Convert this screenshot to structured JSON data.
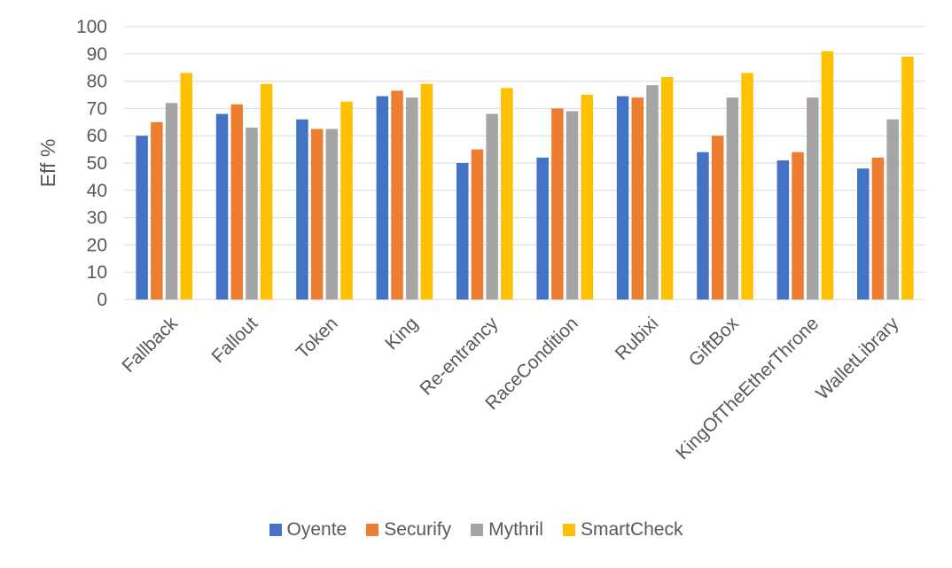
{
  "chart_data": {
    "type": "bar",
    "title": "",
    "xlabel": "",
    "ylabel": "Eff %",
    "ylim": [
      0,
      100
    ],
    "yticks": [
      0,
      10,
      20,
      30,
      40,
      50,
      60,
      70,
      80,
      90,
      100
    ],
    "grid": true,
    "legend_position": "bottom",
    "categories": [
      "Fallback",
      "Fallout",
      "Token",
      "King",
      "Re-entrancy",
      "RaceCondition",
      "Rubixi",
      "GiftBox",
      "KingOfTheEtherThrone",
      "WalletLibrary"
    ],
    "series": [
      {
        "name": "Oyente",
        "color": "#4472C4",
        "values": [
          60,
          68,
          66,
          74.5,
          50,
          52,
          74.5,
          54,
          51,
          48
        ]
      },
      {
        "name": "Securify",
        "color": "#ED7D31",
        "values": [
          65,
          71.5,
          62.5,
          76.5,
          55,
          70,
          74,
          60,
          54,
          52
        ]
      },
      {
        "name": "Mythril",
        "color": "#A5A5A5",
        "values": [
          72,
          63,
          62.5,
          74,
          68,
          69,
          78.5,
          74,
          74,
          66
        ]
      },
      {
        "name": "SmartCheck",
        "color": "#FFC000",
        "values": [
          83,
          79,
          72.5,
          79,
          77.5,
          75,
          81.5,
          83,
          91,
          89
        ]
      }
    ]
  }
}
